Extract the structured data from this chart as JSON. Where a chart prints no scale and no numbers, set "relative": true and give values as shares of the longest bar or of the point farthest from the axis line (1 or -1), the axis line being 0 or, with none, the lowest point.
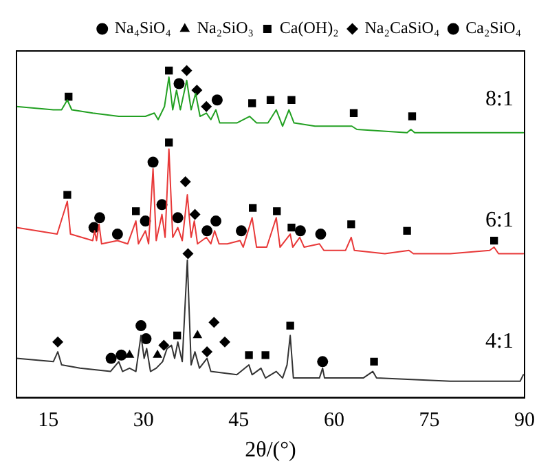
{
  "chart_data": {
    "type": "line",
    "relative": true,
    "xlabel": "2θ/(°)",
    "xlim": [
      10,
      90
    ],
    "xticks": [
      15,
      30,
      45,
      60,
      75,
      90
    ],
    "grid": false,
    "legend": "top",
    "series": [
      {
        "name": "8:1",
        "color": "#22a022",
        "marker": "none",
        "x": [
          10.0,
          15.8,
          17.1,
          18.0,
          18.7,
          22.0,
          26.1,
          30.3,
          31.7,
          32.3,
          33.3,
          34.0,
          34.6,
          35.2,
          35.8,
          36.8,
          37.5,
          38.2,
          38.9,
          39.9,
          40.6,
          41.4,
          42.0,
          44.7,
          46.7,
          47.8,
          49.6,
          50.9,
          51.9,
          52.9,
          53.7,
          57.0,
          62.8,
          63.6,
          71.5,
          72.1,
          72.7,
          77.7,
          89.8
        ],
        "values": [
          0.89,
          0.88,
          0.88,
          0.91,
          0.88,
          0.87,
          0.86,
          0.86,
          0.87,
          0.85,
          0.89,
          0.98,
          0.88,
          0.94,
          0.88,
          0.97,
          0.88,
          0.93,
          0.86,
          0.87,
          0.85,
          0.88,
          0.84,
          0.84,
          0.86,
          0.84,
          0.84,
          0.88,
          0.83,
          0.88,
          0.84,
          0.83,
          0.83,
          0.82,
          0.81,
          0.82,
          0.81,
          0.81,
          0.81
        ]
      },
      {
        "name": "6:1",
        "color": "#e83838",
        "marker": "none",
        "x": [
          10.0,
          16.4,
          18.0,
          18.5,
          22.0,
          22.3,
          22.6,
          23.0,
          23.4,
          25.9,
          27.5,
          28.8,
          29.2,
          30.3,
          30.8,
          31.5,
          32.0,
          32.9,
          33.4,
          34.0,
          34.6,
          35.4,
          36.1,
          36.9,
          37.5,
          38.0,
          38.5,
          39.9,
          40.6,
          41.2,
          41.9,
          43.2,
          45.2,
          45.7,
          47.1,
          47.8,
          49.4,
          50.9,
          51.5,
          53.1,
          53.5,
          54.6,
          55.3,
          57.7,
          58.4,
          61.8,
          62.7,
          63.2,
          68.0,
          71.8,
          72.5,
          78.3,
          84.5,
          85.2,
          85.9,
          89.8
        ],
        "values": [
          0.52,
          0.5,
          0.6,
          0.5,
          0.48,
          0.51,
          0.48,
          0.53,
          0.47,
          0.48,
          0.47,
          0.54,
          0.47,
          0.51,
          0.47,
          0.7,
          0.48,
          0.56,
          0.49,
          0.76,
          0.49,
          0.52,
          0.48,
          0.62,
          0.49,
          0.54,
          0.47,
          0.49,
          0.47,
          0.51,
          0.47,
          0.47,
          0.48,
          0.46,
          0.55,
          0.46,
          0.46,
          0.55,
          0.46,
          0.5,
          0.46,
          0.49,
          0.46,
          0.47,
          0.45,
          0.45,
          0.49,
          0.45,
          0.44,
          0.45,
          0.44,
          0.44,
          0.45,
          0.46,
          0.44,
          0.44
        ]
      },
      {
        "name": "4:1",
        "color": "#333333",
        "marker": "none",
        "x": [
          10.0,
          15.8,
          16.5,
          17.1,
          20.0,
          24.8,
          26.1,
          26.7,
          27.8,
          28.8,
          29.6,
          30.1,
          30.5,
          31.1,
          32.0,
          33.0,
          33.7,
          34.4,
          34.9,
          35.4,
          36.1,
          36.9,
          37.5,
          38.1,
          38.8,
          40.0,
          40.6,
          44.7,
          46.6,
          47.1,
          48.5,
          49.2,
          50.9,
          51.9,
          52.6,
          53.1,
          53.6,
          57.7,
          58.2,
          58.5,
          64.6,
          66.1,
          66.7,
          78.3,
          89.3,
          89.8
        ],
        "values": [
          0.12,
          0.11,
          0.14,
          0.1,
          0.09,
          0.08,
          0.11,
          0.08,
          0.09,
          0.08,
          0.19,
          0.12,
          0.15,
          0.08,
          0.09,
          0.11,
          0.15,
          0.16,
          0.12,
          0.17,
          0.11,
          0.42,
          0.1,
          0.14,
          0.09,
          0.12,
          0.08,
          0.07,
          0.1,
          0.07,
          0.09,
          0.06,
          0.08,
          0.06,
          0.1,
          0.19,
          0.06,
          0.06,
          0.09,
          0.06,
          0.06,
          0.08,
          0.06,
          0.05,
          0.05,
          0.07
        ]
      },
      {
        "name": "Na₄SiO₄",
        "type": "scatter",
        "color": "#000000",
        "marker": "circle",
        "x": [
          35.6,
          41.6,
          30.3,
          35.4,
          40.0,
          41.4,
          45.4
        ],
        "values": [
          0.96,
          0.91,
          0.54,
          0.55,
          0.51,
          0.54,
          0.51
        ]
      },
      {
        "name": "Na₂SiO₃",
        "type": "scatter",
        "color": "#000000",
        "marker": "triangle",
        "x": [
          27.8,
          32.2,
          38.5
        ],
        "values": [
          0.13,
          0.13,
          0.19
        ]
      },
      {
        "name": "Ca(OH)₂",
        "type": "scatter",
        "color": "#000000",
        "marker": "square",
        "x": [
          18.2,
          34.0,
          47.1,
          50.0,
          53.3,
          63.1,
          72.3,
          18.0,
          34.0,
          28.8,
          47.2,
          51.0,
          53.3,
          62.7,
          71.5,
          85.2,
          35.3,
          46.6,
          49.2,
          53.1,
          66.3
        ],
        "values": [
          0.92,
          1.0,
          0.9,
          0.91,
          0.91,
          0.87,
          0.86,
          0.62,
          0.78,
          0.57,
          0.58,
          0.57,
          0.52,
          0.53,
          0.51,
          0.48,
          0.19,
          0.13,
          0.13,
          0.22,
          0.11
        ]
      },
      {
        "name": "Na₂CaSiO₄",
        "type": "scatter",
        "color": "#000000",
        "marker": "diamond",
        "x": [
          36.8,
          38.4,
          39.9,
          36.6,
          38.1,
          37.0,
          16.5,
          33.2,
          40.0,
          41.1,
          42.8
        ],
        "values": [
          1.0,
          0.94,
          0.89,
          0.66,
          0.56,
          0.44,
          0.17,
          0.16,
          0.14,
          0.23,
          0.17
        ]
      },
      {
        "name": "Ca₂SiO₄",
        "type": "scatter",
        "color": "#000000",
        "marker": "circle",
        "x": [
          22.2,
          23.1,
          25.9,
          31.5,
          32.9,
          54.7,
          57.9,
          24.9,
          26.5,
          29.6,
          30.4,
          58.2
        ],
        "values": [
          0.52,
          0.55,
          0.5,
          0.72,
          0.59,
          0.51,
          0.5,
          0.12,
          0.13,
          0.22,
          0.18,
          0.11
        ]
      }
    ]
  }
}
